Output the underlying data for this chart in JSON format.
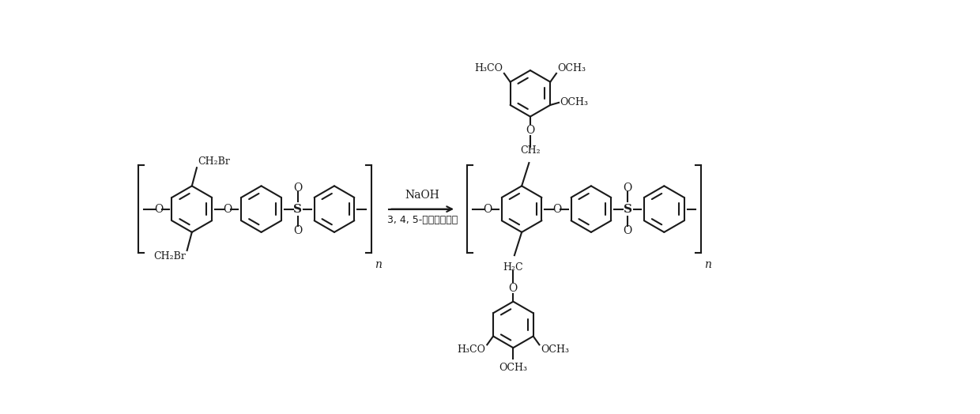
{
  "background_color": "#ffffff",
  "line_color": "#1a1a1a",
  "line_width": 1.5,
  "font_size": 9,
  "arrow_label_top": "NaOH",
  "arrow_label_bottom": "3, 4, 5-三甲氧基苯酚",
  "bracket_n": "n",
  "ch2br_label": "CH₂Br",
  "ch2_label": "CH₂",
  "h2c_label": "H₂C",
  "o_label": "O",
  "s_label": "S",
  "h3co_label": "H₃CO",
  "och3_label": "OCH₃"
}
